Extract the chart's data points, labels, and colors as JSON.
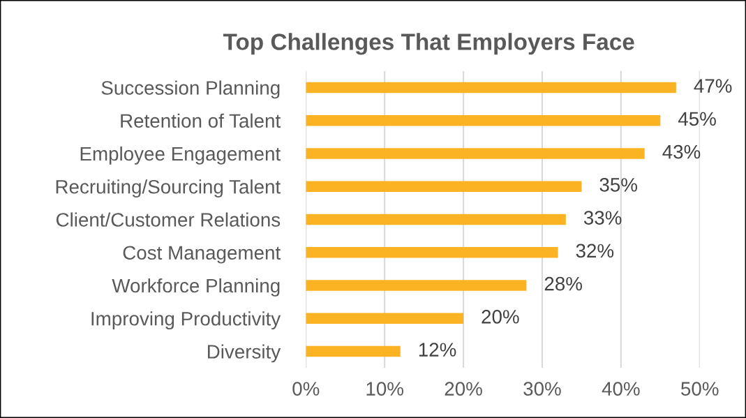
{
  "chart_data": {
    "type": "bar",
    "orientation": "horizontal",
    "title": "Top Challenges That Employers Face",
    "categories": [
      "Succession Planning",
      "Retention of Talent",
      "Employee Engagement",
      "Recruiting/Sourcing Talent",
      "Client/Customer Relations",
      "Cost Management",
      "Workforce Planning",
      "Improving Productivity",
      "Diversity"
    ],
    "values": [
      47,
      45,
      43,
      35,
      33,
      32,
      28,
      20,
      12
    ],
    "value_labels": [
      "47%",
      "45%",
      "43%",
      "35%",
      "33%",
      "32%",
      "28%",
      "20%",
      "12%"
    ],
    "color": "#fbb324",
    "xlim": [
      0,
      50
    ],
    "xticks": [
      {
        "value": 0,
        "label": "0%"
      },
      {
        "value": 10,
        "label": "10%"
      },
      {
        "value": 20,
        "label": "20%"
      },
      {
        "value": 30,
        "label": "30%"
      },
      {
        "value": 40,
        "label": "40%"
      },
      {
        "value": 50,
        "label": "50%"
      }
    ],
    "grid": "x"
  }
}
